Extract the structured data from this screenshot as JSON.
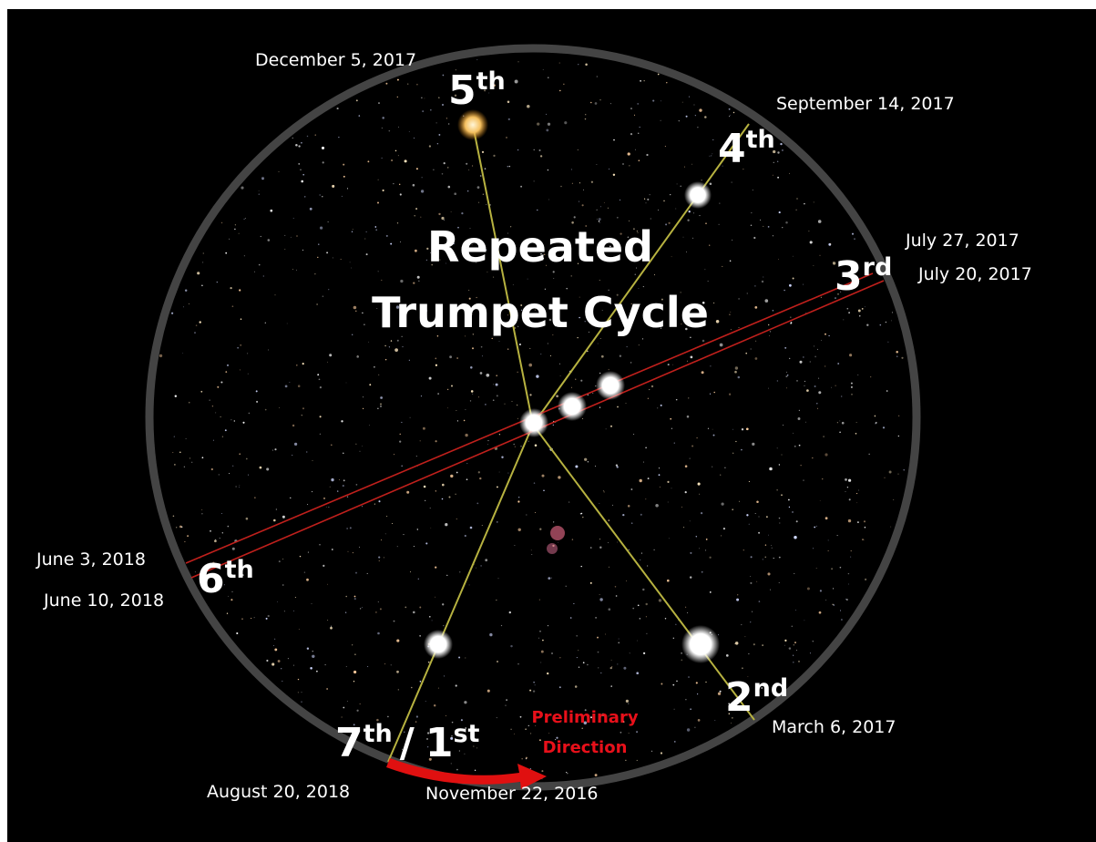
{
  "title": [
    "Repeated",
    "Trumpet Cycle"
  ],
  "ordinals": [
    {
      "number": "5",
      "suffix": "th"
    },
    {
      "number": "4",
      "suffix": "th"
    },
    {
      "number": "3",
      "suffix": "rd"
    },
    {
      "number": "6",
      "suffix": "th"
    },
    {
      "number": "2",
      "suffix": "nd"
    },
    {
      "number": "7",
      "suffix": "th"
    },
    {
      "number": "1",
      "suffix": "st"
    }
  ],
  "separator": "/",
  "dates": [
    "December 5, 2017",
    "September 14, 2017",
    "July 27, 2017",
    "July 20, 2017",
    "June 3, 2018",
    "June 10, 2018",
    "March 6, 2017",
    "August 20, 2018",
    "November 22, 2016"
  ],
  "direction": [
    "Preliminary",
    "Direction"
  ]
}
